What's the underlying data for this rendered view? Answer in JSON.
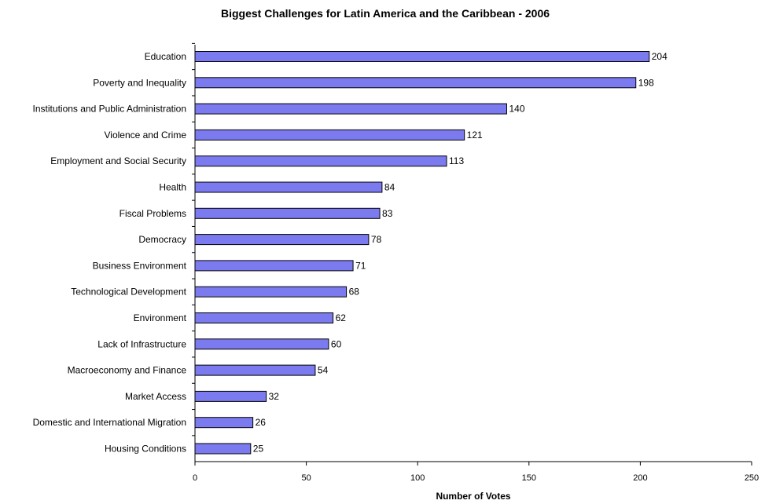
{
  "chart_data": {
    "type": "bar",
    "orientation": "horizontal",
    "title": "Biggest Challenges for Latin America and the Caribbean - 2006",
    "xlabel": "Number of Votes",
    "ylabel": "",
    "xlim": [
      0,
      250
    ],
    "xticks": [
      0,
      50,
      100,
      150,
      200,
      250
    ],
    "grid": false,
    "bar_color": "#7b7bef",
    "categories": [
      "Education",
      "Poverty and Inequality",
      "Institutions and Public Administration",
      "Violence and Crime",
      "Employment and Social Security",
      "Health",
      "Fiscal Problems",
      "Democracy",
      "Business Environment",
      "Technological Development",
      "Environment",
      "Lack of Infrastructure",
      "Macroeconomy and Finance",
      "Market Access",
      "Domestic and International Migration",
      "Housing Conditions"
    ],
    "values": [
      204,
      198,
      140,
      121,
      113,
      84,
      83,
      78,
      71,
      68,
      62,
      60,
      54,
      32,
      26,
      25
    ]
  }
}
